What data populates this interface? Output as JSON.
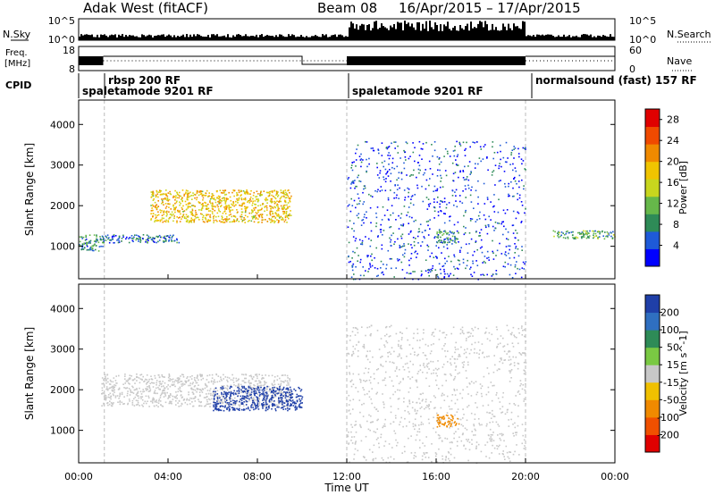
{
  "header": {
    "station": "Adak West (fitACF)",
    "beam": "Beam 08",
    "date_range": "16/Apr/2015 – 17/Apr/2015"
  },
  "nsky_panel": {
    "left_label": "N.Sky",
    "right_label": "N.Search",
    "y_ticks_left": [
      "10^5",
      "10^0"
    ],
    "y_ticks_right": [
      "10^5",
      "10^0"
    ]
  },
  "freq_panel": {
    "left_label": "Freq.",
    "left_unit": "[MHz]",
    "right_label": "Nave",
    "y_ticks_left": [
      "18",
      "8"
    ],
    "y_ticks_right": [
      "60",
      "0"
    ]
  },
  "cpid": {
    "label": "CPID",
    "segments": [
      {
        "name": "spaletamode 9201 RF"
      },
      {
        "name": "rbsp 200 RF"
      },
      {
        "name": "spaletamode 9201 RF"
      },
      {
        "name": "normalsound (fast) 157 RF"
      }
    ]
  },
  "colors": {
    "power": [
      "#0000ff",
      "#1e5ad8",
      "#2e8b57",
      "#66b84a",
      "#c8d61e",
      "#f0c400",
      "#f08a00",
      "#f04a00",
      "#e00000"
    ],
    "velocity": [
      "#1f3fa8",
      "#2f6fc0",
      "#2e8b57",
      "#7ac943",
      "#c8c8c8",
      "#f0c000",
      "#f08a00",
      "#f05000",
      "#e00000"
    ]
  },
  "chart_data": [
    {
      "type": "heatmap",
      "title": "Power",
      "ylabel": "Slant Range [km]",
      "xlabel": "Time UT",
      "x_ticks": [
        "00:00",
        "04:00",
        "08:00",
        "12:00",
        "16:00",
        "20:00",
        "00:00"
      ],
      "y_ticks": [
        1000,
        2000,
        3000,
        4000
      ],
      "ylim": [
        200,
        4600
      ],
      "colorbar": {
        "label": "Power [dB]",
        "ticks": [
          4,
          8,
          12,
          16,
          20,
          24,
          28
        ],
        "range": [
          0,
          30
        ]
      },
      "features": [
        {
          "t_start": 0.0,
          "t_end": 1.1,
          "range_start": 900,
          "range_end": 1300,
          "value": 8
        },
        {
          "t_start": 1.0,
          "t_end": 4.5,
          "range_start": 1100,
          "range_end": 1300,
          "value": 6
        },
        {
          "t_start": 3.2,
          "t_end": 9.5,
          "range_start": 1600,
          "range_end": 2400,
          "value": 18
        },
        {
          "t_start": 12.0,
          "t_end": 20.0,
          "range_start": 200,
          "range_end": 3600,
          "value": 4
        },
        {
          "t_start": 16.0,
          "t_end": 17.0,
          "range_start": 1100,
          "range_end": 1400,
          "value": 8
        },
        {
          "t_start": 21.2,
          "t_end": 24.0,
          "range_start": 1200,
          "range_end": 1400,
          "value": 10
        }
      ]
    },
    {
      "type": "heatmap",
      "title": "Velocity",
      "ylabel": "Slant Range [km]",
      "xlabel": "Time UT",
      "x_ticks": [
        "00:00",
        "04:00",
        "08:00",
        "12:00",
        "16:00",
        "20:00",
        "00:00"
      ],
      "y_ticks": [
        1000,
        2000,
        3000,
        4000
      ],
      "ylim": [
        200,
        4600
      ],
      "colorbar": {
        "label": "Velocity [m s^-1]",
        "ticks": [
          200,
          100,
          50,
          15,
          -15,
          -50,
          -100,
          -200
        ],
        "range": [
          -250,
          250
        ]
      },
      "features": [
        {
          "t_start": 1.0,
          "t_end": 9.5,
          "range_start": 1600,
          "range_end": 2400,
          "value": 0
        },
        {
          "t_start": 6.0,
          "t_end": 10.0,
          "range_start": 1500,
          "range_end": 2100,
          "value": -200
        },
        {
          "t_start": 12.0,
          "t_end": 20.0,
          "range_start": 200,
          "range_end": 3600,
          "value": 0
        },
        {
          "t_start": 16.0,
          "t_end": 17.0,
          "range_start": 1100,
          "range_end": 1400,
          "value": 100
        }
      ]
    }
  ],
  "footer": {
    "xlabel": "Time UT"
  }
}
